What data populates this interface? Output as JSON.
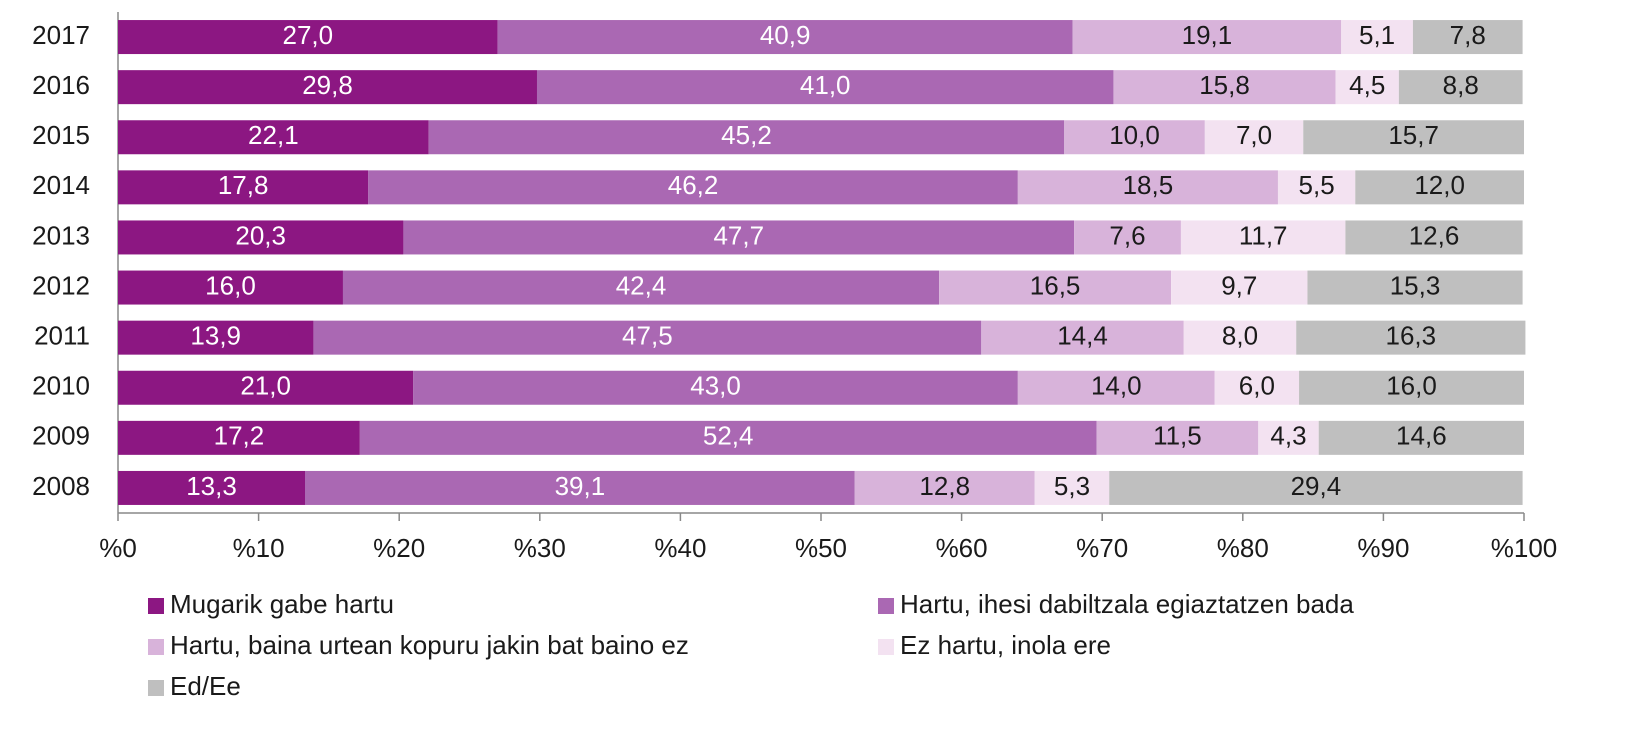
{
  "chart_data": {
    "type": "stacked-bar-horizontal",
    "categories": [
      "2017",
      "2016",
      "2015",
      "2014",
      "2013",
      "2012",
      "2011",
      "2010",
      "2009",
      "2008"
    ],
    "series": [
      {
        "name": "Mugarik gabe hartu",
        "color": "#8c1782",
        "label_color": "#ffffff",
        "values": [
          27.0,
          29.8,
          22.1,
          17.8,
          20.3,
          16.0,
          13.9,
          21.0,
          17.2,
          13.3
        ],
        "value_labels": [
          "27,0",
          "29,8",
          "22,1",
          "17,8",
          "20,3",
          "16,0",
          "13,9",
          "21,0",
          "17,2",
          "13,3"
        ]
      },
      {
        "name": "Hartu, ihesi dabiltzala egiaztatzen bada",
        "color": "#aa68b3",
        "label_color": "#ffffff",
        "values": [
          40.9,
          41.0,
          45.2,
          46.2,
          47.7,
          42.4,
          47.5,
          43.0,
          52.4,
          39.1
        ],
        "value_labels": [
          "40,9",
          "41,0",
          "45,2",
          "46,2",
          "47,7",
          "42,4",
          "47,5",
          "43,0",
          "52,4",
          "39,1"
        ]
      },
      {
        "name": "Hartu, baina urtean kopuru jakin bat baino ez",
        "color": "#d8b3da",
        "label_color": "#1a1a1a",
        "values": [
          19.1,
          15.8,
          10.0,
          18.5,
          7.6,
          16.5,
          14.4,
          14.0,
          11.5,
          12.8
        ],
        "value_labels": [
          "19,1",
          "15,8",
          "10,0",
          "18,5",
          "7,6",
          "16,5",
          "14,4",
          "14,0",
          "11,5",
          "12,8"
        ]
      },
      {
        "name": "Ez hartu, inola ere",
        "color": "#f3e2f1",
        "label_color": "#1a1a1a",
        "values": [
          5.1,
          4.5,
          7.0,
          5.5,
          11.7,
          9.7,
          8.0,
          6.0,
          4.3,
          5.3
        ],
        "value_labels": [
          "5,1",
          "4,5",
          "7,0",
          "5,5",
          "11,7",
          "9,7",
          "8,0",
          "6,0",
          "4,3",
          "5,3"
        ]
      },
      {
        "name": "Ed/Ee",
        "color": "#bfbfbf",
        "label_color": "#1a1a1a",
        "values": [
          7.8,
          8.8,
          15.7,
          12.0,
          12.6,
          15.3,
          16.3,
          16.0,
          14.6,
          29.4
        ],
        "value_labels": [
          "7,8",
          "8,8",
          "15,7",
          "12,0",
          "12,6",
          "15,3",
          "16,3",
          "16,0",
          "14,6",
          "29,4"
        ]
      }
    ],
    "xlim": [
      0,
      100
    ],
    "xticks": [
      {
        "value": 0,
        "label": "%0"
      },
      {
        "value": 10,
        "label": "%10"
      },
      {
        "value": 20,
        "label": "%20"
      },
      {
        "value": 30,
        "label": "%30"
      },
      {
        "value": 40,
        "label": "%40"
      },
      {
        "value": 50,
        "label": "%50"
      },
      {
        "value": 60,
        "label": "%60"
      },
      {
        "value": 70,
        "label": "%70"
      },
      {
        "value": 80,
        "label": "%80"
      },
      {
        "value": 90,
        "label": "%90"
      },
      {
        "value": 100,
        "label": "%100"
      }
    ],
    "legend": "bottom"
  }
}
